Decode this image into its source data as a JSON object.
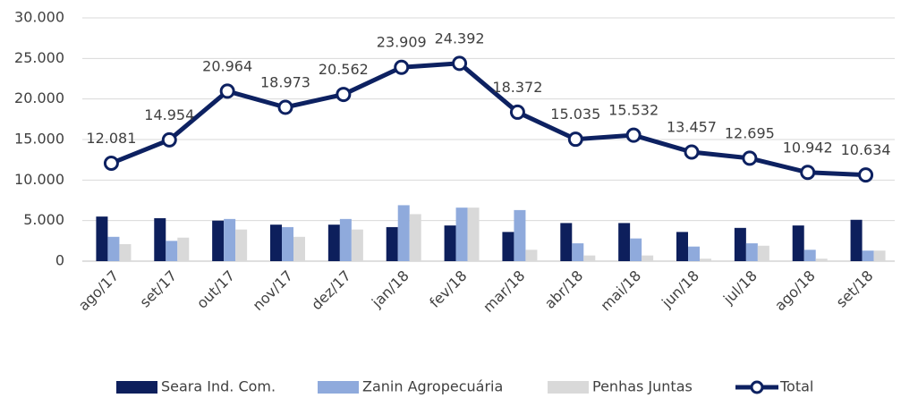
{
  "chart_data": {
    "type": "bar",
    "categories": [
      "ago/17",
      "set/17",
      "out/17",
      "nov/17",
      "dez/17",
      "jan/18",
      "fev/18",
      "mar/18",
      "abr/18",
      "mai/18",
      "jun/18",
      "jul/18",
      "ago/18",
      "set/18"
    ],
    "series": [
      {
        "name": "Seara Ind. Com.",
        "color": "#0d1f5c",
        "values": [
          5500,
          5300,
          5000,
          4500,
          4500,
          4200,
          4400,
          3600,
          4700,
          4700,
          3600,
          4100,
          4400,
          5100
        ]
      },
      {
        "name": "Zanin Agropecuária",
        "color": "#8faadc",
        "values": [
          3000,
          2500,
          5200,
          4200,
          5200,
          6900,
          6600,
          6300,
          2200,
          2800,
          1800,
          2200,
          1400,
          1300
        ]
      },
      {
        "name": "Penhas Juntas",
        "color": "#d9d9d9",
        "values": [
          2100,
          2900,
          3900,
          3000,
          3900,
          5800,
          6600,
          1400,
          700,
          700,
          300,
          1900,
          300,
          1300
        ]
      },
      {
        "name": "Total",
        "type": "line",
        "color": "#0d2161",
        "values": [
          12081,
          14954,
          20964,
          18973,
          20562,
          23909,
          24392,
          18372,
          15035,
          15532,
          13457,
          12695,
          10942,
          10634
        ],
        "value_labels": [
          "12.081",
          "14.954",
          "20.964",
          "18.973",
          "20.562",
          "23.909",
          "24.392",
          "18.372",
          "15.035",
          "15.532",
          "13.457",
          "12.695",
          "10.942",
          "10.634"
        ]
      }
    ],
    "ylim": [
      0,
      30000
    ],
    "yticks": [
      0,
      {
        "value": 5000,
        "label": "5.000"
      },
      {
        "value": 10000,
        "label": "10.000"
      },
      {
        "value": 15000,
        "label": "15.000"
      },
      {
        "value": 20000,
        "label": "20.000"
      },
      {
        "value": 25000,
        "label": "25.000"
      },
      {
        "value": 30000,
        "label": "30.000"
      }
    ],
    "grid": true,
    "legend": "bottom"
  }
}
